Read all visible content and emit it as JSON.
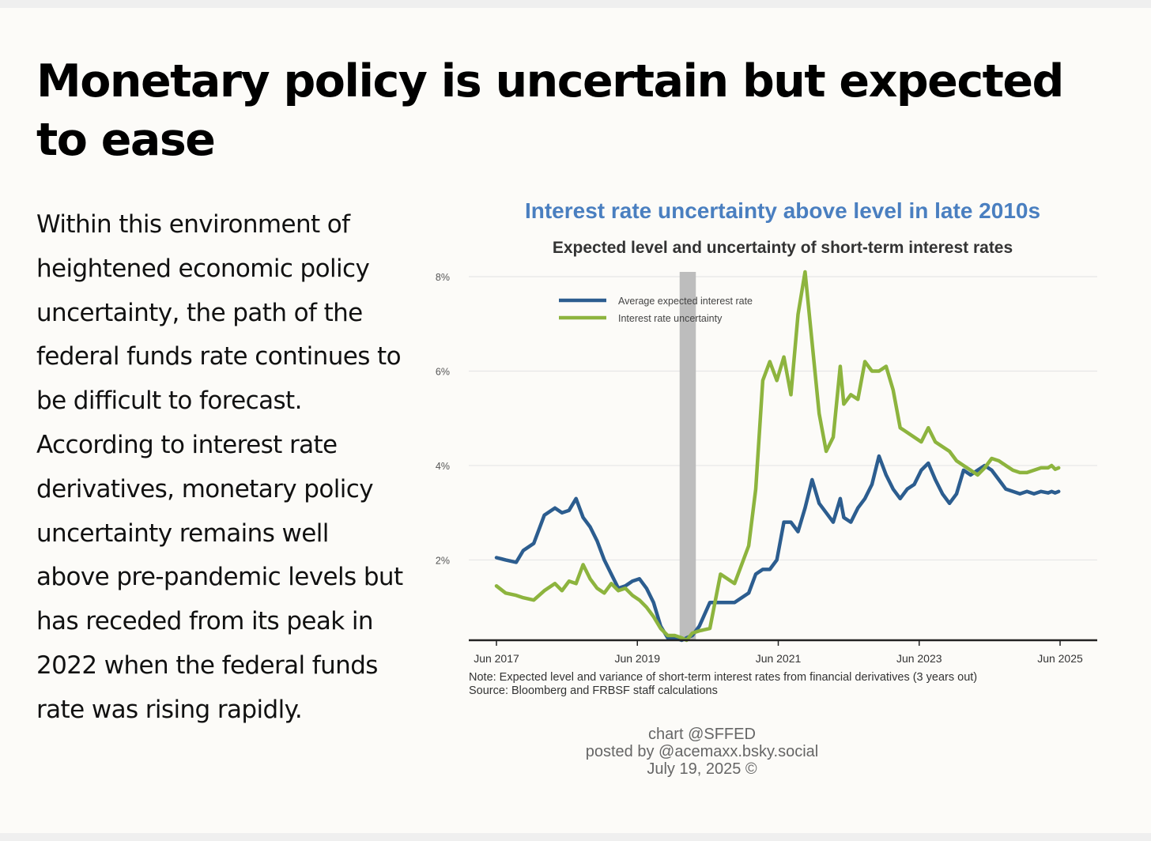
{
  "headline": "Monetary policy is uncertain but expected to ease",
  "body_text": "Within this environment of heightened economic policy uncertainty, the path of the federal funds rate continues to be difficult to forecast. According to interest rate derivatives, monetary policy uncertainty remains well above pre-pandemic levels but has receded from its peak in 2022 when the federal funds rate was rising rapidly.",
  "credit": {
    "line1": "chart @SFFED",
    "line2": "posted by @acemaxx.bsky.social",
    "line3": "July 19, 2025 ©"
  },
  "chart_data": {
    "type": "line",
    "title": "Interest rate uncertainty above level in late 2010s",
    "subtitle": "Expected level and uncertainty of short-term interest rates",
    "x_tick_labels": [
      "Jun 2017",
      "Jun 2019",
      "Jun 2021",
      "Jun 2023",
      "Jun 2025"
    ],
    "x_ticks": [
      2017.42,
      2019.42,
      2021.42,
      2023.42,
      2025.42
    ],
    "xlim": [
      2017.42,
      2025.42
    ],
    "y_tick_labels": [
      "2%",
      "4%",
      "6%",
      "8%"
    ],
    "y_ticks": [
      2,
      4,
      6,
      8
    ],
    "ylim": [
      0.3,
      8
    ],
    "grid": true,
    "legend_position": "top-left",
    "shaded_region": [
      2020.02,
      2020.25
    ],
    "note": "Note: Expected level and variance of short-term interest rates from financial derivatives (3 years out)",
    "source": "Source: Bloomberg and FRBSF staff calculations",
    "colors": {
      "Average expected interest rate": "#2c5d8f",
      "Interest rate uncertainty": "#8db43e",
      "shading": "#bdbdbd"
    },
    "series": [
      {
        "name": "Average expected interest rate",
        "x": [
          2017.42,
          2017.55,
          2017.7,
          2017.8,
          2017.95,
          2018.1,
          2018.25,
          2018.35,
          2018.45,
          2018.55,
          2018.65,
          2018.75,
          2018.85,
          2018.95,
          2019.05,
          2019.15,
          2019.25,
          2019.35,
          2019.45,
          2019.55,
          2019.65,
          2019.75,
          2019.85,
          2019.95,
          2020.05,
          2020.12,
          2020.2,
          2020.3,
          2020.45,
          2020.6,
          2020.8,
          2021.0,
          2021.1,
          2021.2,
          2021.3,
          2021.4,
          2021.5,
          2021.6,
          2021.7,
          2021.8,
          2021.9,
          2022.0,
          2022.1,
          2022.2,
          2022.3,
          2022.35,
          2022.45,
          2022.55,
          2022.65,
          2022.75,
          2022.85,
          2022.95,
          2023.05,
          2023.15,
          2023.25,
          2023.35,
          2023.45,
          2023.55,
          2023.65,
          2023.75,
          2023.85,
          2023.95,
          2024.05,
          2024.15,
          2024.25,
          2024.35,
          2024.45,
          2024.55,
          2024.65,
          2024.75,
          2024.85,
          2024.95,
          2025.05,
          2025.15,
          2025.25,
          2025.3,
          2025.35,
          2025.4
        ],
        "y": [
          2.05,
          2.0,
          1.95,
          2.2,
          2.35,
          2.95,
          3.1,
          3.0,
          3.05,
          3.3,
          2.9,
          2.7,
          2.4,
          2.0,
          1.7,
          1.4,
          1.45,
          1.55,
          1.6,
          1.4,
          1.1,
          0.6,
          0.35,
          0.35,
          0.3,
          0.35,
          0.4,
          0.6,
          1.1,
          1.1,
          1.1,
          1.3,
          1.7,
          1.8,
          1.8,
          2.0,
          2.8,
          2.8,
          2.6,
          3.1,
          3.7,
          3.2,
          3.0,
          2.8,
          3.3,
          2.9,
          2.8,
          3.1,
          3.3,
          3.6,
          4.2,
          3.8,
          3.5,
          3.3,
          3.5,
          3.6,
          3.9,
          4.05,
          3.7,
          3.4,
          3.2,
          3.4,
          3.9,
          3.8,
          3.9,
          4.0,
          3.9,
          3.7,
          3.5,
          3.45,
          3.4,
          3.45,
          3.4,
          3.45,
          3.42,
          3.45,
          3.42,
          3.45
        ]
      },
      {
        "name": "Interest rate uncertainty",
        "x": [
          2017.42,
          2017.55,
          2017.7,
          2017.8,
          2017.95,
          2018.1,
          2018.25,
          2018.35,
          2018.45,
          2018.55,
          2018.65,
          2018.75,
          2018.85,
          2018.95,
          2019.05,
          2019.15,
          2019.25,
          2019.35,
          2019.45,
          2019.55,
          2019.65,
          2019.75,
          2019.85,
          2019.95,
          2020.05,
          2020.12,
          2020.2,
          2020.3,
          2020.45,
          2020.6,
          2020.8,
          2021.0,
          2021.1,
          2021.2,
          2021.3,
          2021.4,
          2021.5,
          2021.6,
          2021.7,
          2021.8,
          2021.9,
          2022.0,
          2022.1,
          2022.2,
          2022.3,
          2022.35,
          2022.45,
          2022.55,
          2022.65,
          2022.75,
          2022.85,
          2022.95,
          2023.05,
          2023.15,
          2023.25,
          2023.35,
          2023.45,
          2023.55,
          2023.65,
          2023.75,
          2023.85,
          2023.95,
          2024.05,
          2024.15,
          2024.25,
          2024.35,
          2024.45,
          2024.55,
          2024.65,
          2024.75,
          2024.85,
          2024.95,
          2025.05,
          2025.15,
          2025.25,
          2025.3,
          2025.35,
          2025.4
        ],
        "y": [
          1.45,
          1.3,
          1.25,
          1.2,
          1.15,
          1.35,
          1.5,
          1.35,
          1.55,
          1.5,
          1.9,
          1.6,
          1.4,
          1.3,
          1.5,
          1.35,
          1.4,
          1.25,
          1.15,
          1.0,
          0.8,
          0.55,
          0.4,
          0.4,
          0.35,
          0.3,
          0.45,
          0.5,
          0.55,
          1.7,
          1.5,
          2.3,
          3.5,
          5.8,
          6.2,
          5.8,
          6.3,
          5.5,
          7.2,
          8.1,
          6.6,
          5.1,
          4.3,
          4.6,
          6.1,
          5.3,
          5.5,
          5.4,
          6.2,
          6.0,
          6.0,
          6.1,
          5.6,
          4.8,
          4.7,
          4.6,
          4.5,
          4.8,
          4.5,
          4.4,
          4.3,
          4.1,
          4.0,
          3.9,
          3.8,
          3.95,
          4.15,
          4.1,
          4.0,
          3.9,
          3.85,
          3.85,
          3.9,
          3.95,
          3.95,
          4.0,
          3.92,
          3.95
        ]
      }
    ]
  }
}
